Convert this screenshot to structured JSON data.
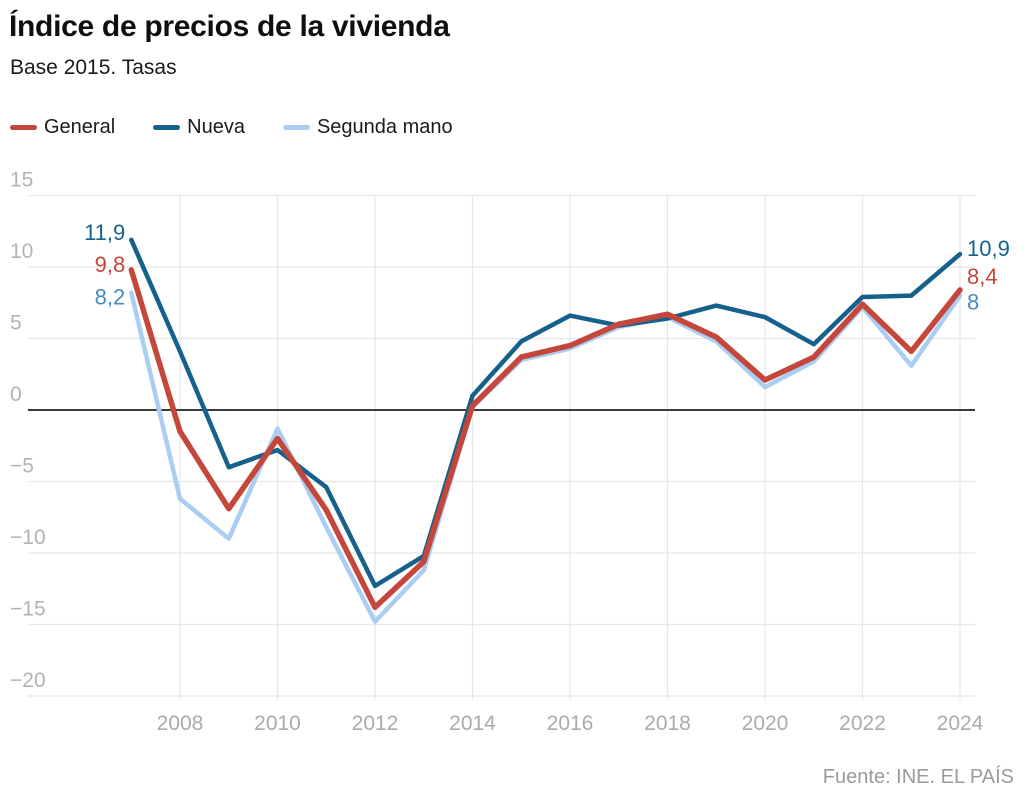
{
  "header": {
    "title": "Índice de precios de la vivienda",
    "subtitle": "Base 2015. Tasas"
  },
  "legend": [
    {
      "label": "General",
      "color": "#c5463a"
    },
    {
      "label": "Nueva",
      "color": "#16618c"
    },
    {
      "label": "Segunda mano",
      "color": "#a9cdf3"
    }
  ],
  "source": "Fuente: INE. EL PAÍS",
  "chart_data": {
    "type": "line",
    "title": "Índice de precios de la vivienda",
    "subtitle": "Base 2015. Tasas",
    "x": [
      2007,
      2008,
      2009,
      2010,
      2011,
      2012,
      2013,
      2014,
      2015,
      2016,
      2017,
      2018,
      2019,
      2020,
      2021,
      2022,
      2023,
      2024
    ],
    "series": [
      {
        "name": "General",
        "color": "#c5463a",
        "values": [
          9.8,
          -1.5,
          -6.9,
          -2.0,
          -7.0,
          -13.8,
          -10.6,
          0.3,
          3.7,
          4.5,
          6.0,
          6.7,
          5.1,
          2.1,
          3.7,
          7.4,
          4.1,
          8.4
        ]
      },
      {
        "name": "Nueva",
        "color": "#16618c",
        "values": [
          11.9,
          4.1,
          -4.0,
          -2.8,
          -5.4,
          -12.3,
          -10.2,
          1.0,
          4.8,
          6.6,
          5.9,
          6.4,
          7.3,
          6.5,
          4.6,
          7.9,
          8.0,
          10.9
        ]
      },
      {
        "name": "Segunda mano",
        "color": "#a9cdf3",
        "values": [
          8.2,
          -6.2,
          -9.0,
          -1.3,
          -8.2,
          -14.8,
          -11.2,
          0.2,
          3.5,
          4.3,
          5.8,
          6.5,
          4.8,
          1.6,
          3.4,
          7.2,
          3.1,
          8.0
        ]
      }
    ],
    "xlim": [
      2007,
      2024
    ],
    "ylim": [
      -20,
      15
    ],
    "grid": true,
    "zero_line": true,
    "legend_position": "top-left",
    "x_ticks": [
      {
        "value": 2008,
        "label": "2008"
      },
      {
        "value": 2010,
        "label": "2010"
      },
      {
        "value": 2012,
        "label": "2012"
      },
      {
        "value": 2014,
        "label": "2014"
      },
      {
        "value": 2016,
        "label": "2016"
      },
      {
        "value": 2018,
        "label": "2018"
      },
      {
        "value": 2020,
        "label": "2020"
      },
      {
        "value": 2022,
        "label": "2022"
      },
      {
        "value": 2024,
        "label": "2024"
      }
    ],
    "y_ticks": [
      {
        "value": 15,
        "label": "15"
      },
      {
        "value": 10,
        "label": "10"
      },
      {
        "value": 5,
        "label": "5"
      },
      {
        "value": 0,
        "label": "0"
      },
      {
        "value": -5,
        "label": "−5"
      },
      {
        "value": -10,
        "label": "−10"
      },
      {
        "value": -15,
        "label": "−15"
      },
      {
        "value": -20,
        "label": "−20"
      }
    ],
    "annotations": {
      "start": [
        {
          "label": "11,9",
          "value": 11.9,
          "color": "#16618c"
        },
        {
          "label": "9,8",
          "value": 9.8,
          "color": "#c5463a"
        },
        {
          "label": "8,2",
          "value": 8.2,
          "color": "#4a8ac2"
        }
      ],
      "end": [
        {
          "label": "10,9",
          "value": 10.9,
          "color": "#16618c"
        },
        {
          "label": "8,4",
          "value": 8.4,
          "color": "#c5463a"
        },
        {
          "label": "8",
          "value": 8.0,
          "color": "#4a8ac2"
        }
      ]
    }
  }
}
